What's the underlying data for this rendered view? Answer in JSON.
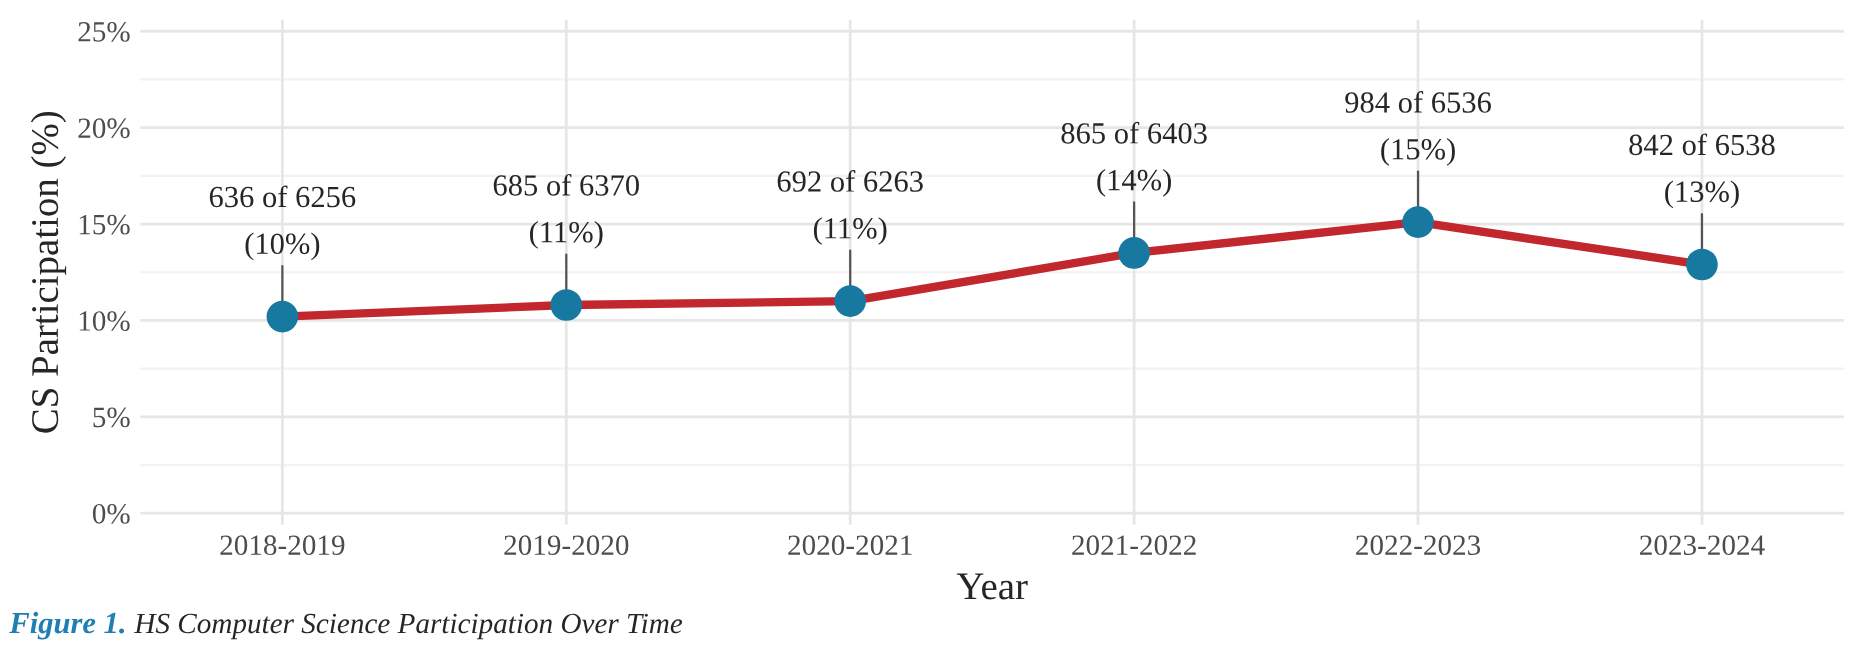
{
  "chart_data": {
    "type": "line",
    "xlabel": "Year",
    "ylabel": "CS Participation (%)",
    "categories": [
      "2018-2019",
      "2019-2020",
      "2020-2021",
      "2021-2022",
      "2022-2023",
      "2023-2024"
    ],
    "series": [
      {
        "color": "#c1272d",
        "values": [
          10.2,
          10.8,
          11.0,
          13.5,
          15.1,
          12.9
        ],
        "value_labels": [
          "636 of 6256\n(10%)",
          "685 of 6370\n(11%)",
          "692 of 6263\n(11%)",
          "865 of 6403\n(14%)",
          "984 of 6536\n(15%)",
          "842 of 6538\n(13%)"
        ]
      }
    ],
    "ylim": [
      -0.6,
      25.6
    ],
    "yticks": [
      {
        "value": 0,
        "label": "0%"
      },
      {
        "value": 5,
        "label": "5%"
      },
      {
        "value": 10,
        "label": "10%"
      },
      {
        "value": 15,
        "label": "15%"
      },
      {
        "value": 20,
        "label": "20%"
      },
      {
        "value": 25,
        "label": "25%"
      }
    ],
    "grid": true,
    "marker": "circle",
    "line_style": "solid",
    "annotations": [
      "Figure 1.",
      "HS Computer Science Participation Over Time"
    ]
  }
}
